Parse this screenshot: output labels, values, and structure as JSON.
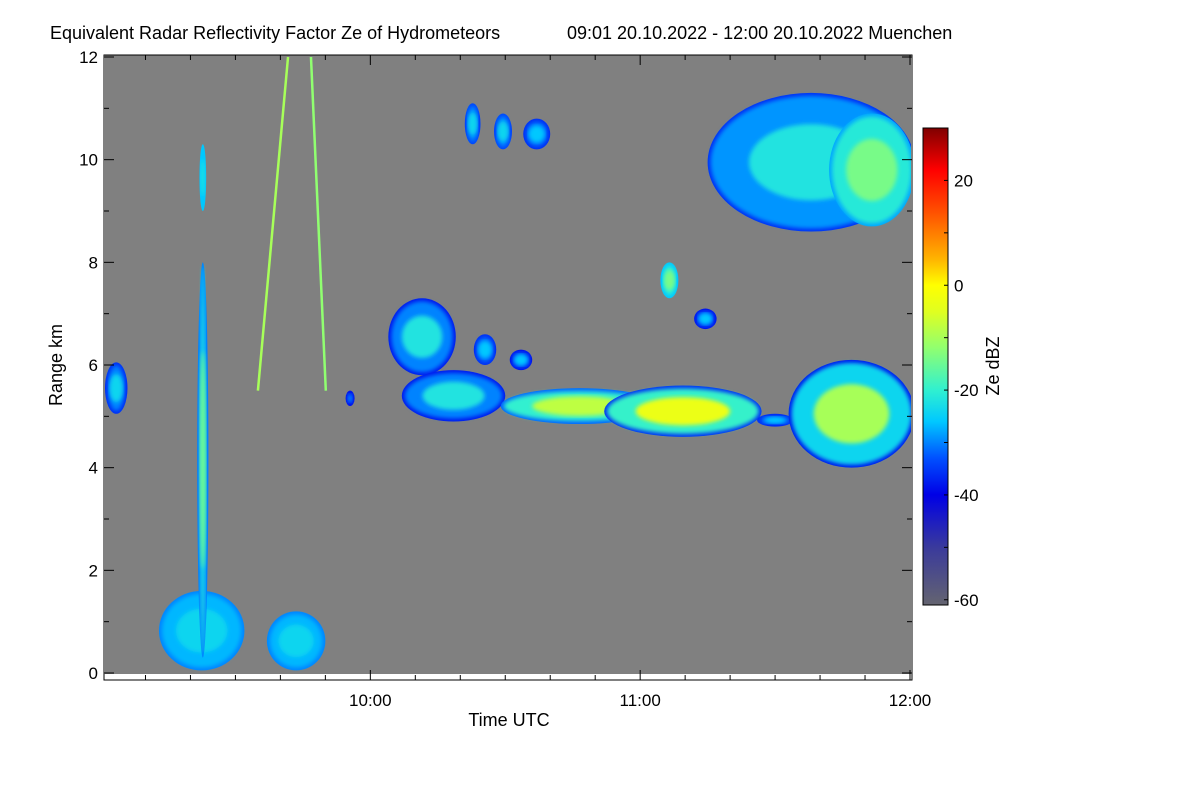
{
  "chart_data": {
    "type": "heatmap",
    "title": "Equivalent Radar Reflectivity Factor Ze of Hydrometeors",
    "subtitle": "09:01 20.10.2022 - 12:00 20.10.2022 Muenchen",
    "xlabel": "Time UTC",
    "ylabel": "Range km",
    "colorbar_label": "Ze dBZ",
    "x_range_minutes_after_0900": [
      1,
      180
    ],
    "x_ticks": [
      {
        "t": 60,
        "label": "10:00"
      },
      {
        "t": 120,
        "label": "11:00"
      },
      {
        "t": 180,
        "label": "12:00"
      }
    ],
    "x_minor_step_minutes": 10,
    "ylim": [
      0,
      12
    ],
    "y_ticks": [
      {
        "v": 0,
        "label": "0"
      },
      {
        "v": 2,
        "label": "2"
      },
      {
        "v": 4,
        "label": "4"
      },
      {
        "v": 6,
        "label": "6"
      },
      {
        "v": 8,
        "label": "8"
      },
      {
        "v": 10,
        "label": "10"
      },
      {
        "v": 12,
        "label": "12"
      }
    ],
    "y_minor_step": 1,
    "colorbar_range": [
      -61,
      30
    ],
    "colorbar_ticks": [
      {
        "v": 20,
        "label": "20"
      },
      {
        "v": 0,
        "label": "0"
      },
      {
        "v": -20,
        "label": "-20"
      },
      {
        "v": -40,
        "label": "-40"
      },
      {
        "v": -60,
        "label": "-60"
      }
    ],
    "background_color": "#808080",
    "colormap": [
      [
        -61,
        "#646470"
      ],
      [
        -50,
        "#3a3a9c"
      ],
      [
        -40,
        "#0000e6"
      ],
      [
        -33,
        "#0050ff"
      ],
      [
        -26,
        "#00c8ff"
      ],
      [
        -20,
        "#30f0d0"
      ],
      [
        -12,
        "#90ff70"
      ],
      [
        -5,
        "#e0ff20"
      ],
      [
        0,
        "#ffff00"
      ],
      [
        5,
        "#ffb400"
      ],
      [
        14,
        "#ff5000"
      ],
      [
        22,
        "#ff0000"
      ],
      [
        30,
        "#800000"
      ]
    ],
    "echoes": [
      {
        "name": "early-low-cloud",
        "t": [
          1,
          6
        ],
        "r": [
          5.05,
          6.05
        ],
        "edge": -36,
        "core": -24
      },
      {
        "name": "ground-cone-1",
        "t": [
          13,
          32
        ],
        "r": [
          0.05,
          1.6
        ],
        "edge": -30,
        "core": -24
      },
      {
        "name": "ground-cone-2",
        "t": [
          37,
          50
        ],
        "r": [
          0.05,
          1.2
        ],
        "edge": -30,
        "core": -24
      },
      {
        "name": "column-1",
        "t": [
          21.5,
          24
        ],
        "r": [
          0.3,
          8.0
        ],
        "edge": -30,
        "core": -15
      },
      {
        "name": "column-1-top",
        "t": [
          22,
          23.5
        ],
        "r": [
          9.0,
          10.3
        ],
        "edge": -26,
        "core": -22
      },
      {
        "name": "small-blob",
        "t": [
          54.5,
          56.5
        ],
        "r": [
          5.2,
          5.5
        ],
        "edge": -38,
        "core": -30
      },
      {
        "name": "low-cloud-west-upper",
        "t": [
          64,
          79
        ],
        "r": [
          5.8,
          7.3
        ],
        "edge": -38,
        "core": -22
      },
      {
        "name": "low-cloud-west-lower",
        "t": [
          67,
          90
        ],
        "r": [
          4.9,
          5.9
        ],
        "edge": -38,
        "core": -22
      },
      {
        "name": "low-cloud-mid",
        "t": [
          89,
          124
        ],
        "r": [
          4.85,
          5.55
        ],
        "edge": -32,
        "core": -8
      },
      {
        "name": "low-cloud-main",
        "t": [
          112,
          147
        ],
        "r": [
          4.6,
          5.6
        ],
        "edge": -36,
        "core": -3
      },
      {
        "name": "low-cloud-gap",
        "t": [
          146,
          154
        ],
        "r": [
          4.8,
          5.05
        ],
        "edge": -36,
        "core": -26
      },
      {
        "name": "low-cloud-east",
        "t": [
          153,
          181
        ],
        "r": [
          4.0,
          6.1
        ],
        "edge": -38,
        "core": -10
      },
      {
        "name": "cirrus-west-1",
        "t": [
          81,
          84.5
        ],
        "r": [
          10.3,
          11.1
        ],
        "edge": -34,
        "core": -24
      },
      {
        "name": "cirrus-west-2",
        "t": [
          87.5,
          91.5
        ],
        "r": [
          10.2,
          10.9
        ],
        "edge": -34,
        "core": -24
      },
      {
        "name": "cirrus-west-3",
        "t": [
          94,
          100
        ],
        "r": [
          10.2,
          10.8
        ],
        "edge": -36,
        "core": -26
      },
      {
        "name": "cirrus-east",
        "t": [
          135,
          181
        ],
        "r": [
          8.6,
          11.3
        ],
        "edge": -36,
        "core": -22
      },
      {
        "name": "cirrus-east-core",
        "t": [
          162,
          181
        ],
        "r": [
          8.7,
          10.9
        ],
        "edge": -28,
        "core": -14
      },
      {
        "name": "mid-blob-1",
        "t": [
          124.5,
          128.5
        ],
        "r": [
          7.3,
          8.0
        ],
        "edge": -26,
        "core": -14
      },
      {
        "name": "mid-blob-2",
        "t": [
          132,
          137
        ],
        "r": [
          6.7,
          7.1
        ],
        "edge": -38,
        "core": -26
      },
      {
        "name": "mid-blob-3",
        "t": [
          83,
          88
        ],
        "r": [
          6.0,
          6.6
        ],
        "edge": -36,
        "core": -26
      },
      {
        "name": "mid-blob-4",
        "t": [
          91,
          96
        ],
        "r": [
          5.9,
          6.3
        ],
        "edge": -38,
        "core": -26
      }
    ],
    "tracks": [
      {
        "name": "track-1",
        "from": {
          "t": 35,
          "r": 5.5
        },
        "to": {
          "t": 41.7,
          "r": 12
        },
        "dbz": -10
      },
      {
        "name": "track-2",
        "from": {
          "t": 50.1,
          "r": 5.5
        },
        "to": {
          "t": 46.8,
          "r": 12
        },
        "dbz": -12
      }
    ]
  }
}
